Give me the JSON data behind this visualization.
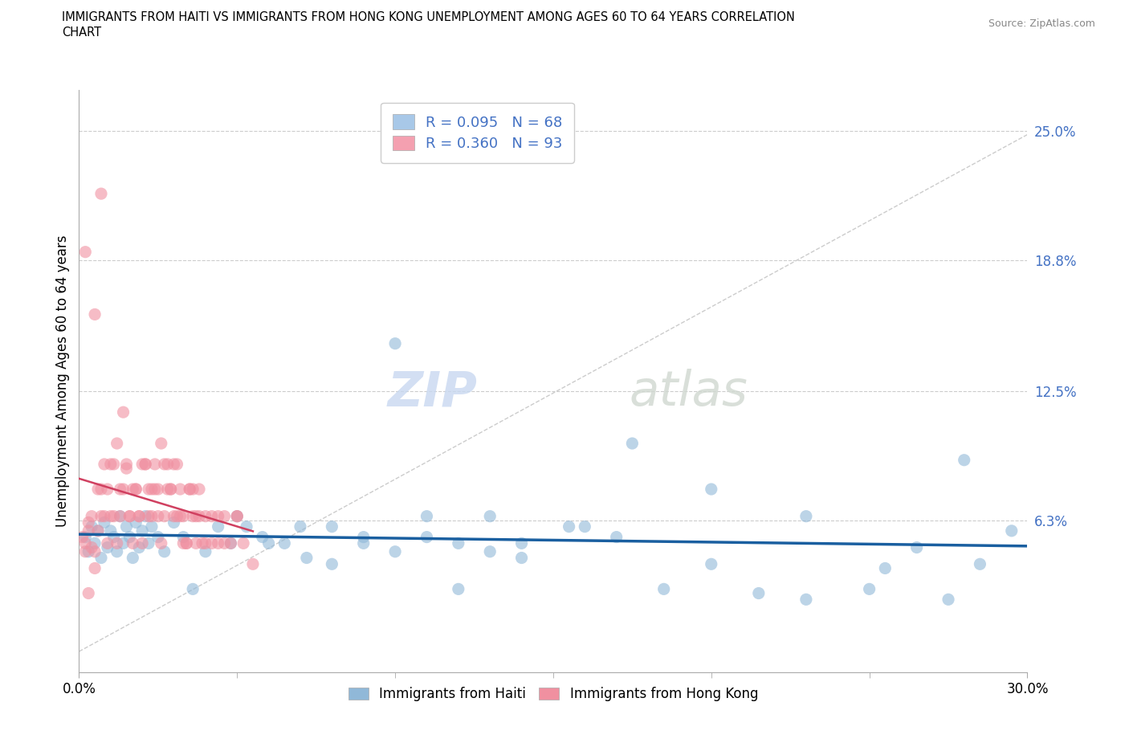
{
  "title_line1": "IMMIGRANTS FROM HAITI VS IMMIGRANTS FROM HONG KONG UNEMPLOYMENT AMONG AGES 60 TO 64 YEARS CORRELATION",
  "title_line2": "CHART",
  "source_text": "Source: ZipAtlas.com",
  "ylabel": "Unemployment Among Ages 60 to 64 years",
  "xmin": 0.0,
  "xmax": 0.3,
  "ymin": -0.01,
  "ymax": 0.27,
  "ytick_vals": [
    0.063,
    0.125,
    0.188,
    0.25
  ],
  "ytick_labels": [
    "6.3%",
    "12.5%",
    "18.8%",
    "25.0%"
  ],
  "xtick_vals": [
    0.0,
    0.3
  ],
  "xtick_labels": [
    "0.0%",
    "30.0%"
  ],
  "xtick_minor_vals": [
    0.05,
    0.1,
    0.15,
    0.2,
    0.25
  ],
  "legend_entries": [
    {
      "label": "R = 0.095   N = 68",
      "color": "#a8c8e8"
    },
    {
      "label": "R = 0.360   N = 93",
      "color": "#f4a0b0"
    }
  ],
  "legend_bottom_labels": [
    "Immigrants from Haiti",
    "Immigrants from Hong Kong"
  ],
  "haiti_color": "#90b8d8",
  "hongkong_color": "#f090a0",
  "haiti_trend_color": "#1a5fa0",
  "hongkong_trend_color": "#d04060",
  "diagonal_color": "#d0d0d0",
  "watermark_zip": "ZIP",
  "watermark_atlas": "atlas",
  "haiti_scatter_x": [
    0.002,
    0.003,
    0.004,
    0.005,
    0.006,
    0.007,
    0.008,
    0.009,
    0.01,
    0.011,
    0.012,
    0.013,
    0.014,
    0.015,
    0.016,
    0.017,
    0.018,
    0.019,
    0.02,
    0.021,
    0.022,
    0.023,
    0.025,
    0.027,
    0.03,
    0.033,
    0.036,
    0.04,
    0.044,
    0.048,
    0.053,
    0.058,
    0.065,
    0.072,
    0.08,
    0.09,
    0.1,
    0.11,
    0.12,
    0.13,
    0.14,
    0.155,
    0.17,
    0.185,
    0.2,
    0.215,
    0.23,
    0.25,
    0.265,
    0.275,
    0.285,
    0.295,
    0.05,
    0.06,
    0.07,
    0.08,
    0.09,
    0.1,
    0.11,
    0.12,
    0.13,
    0.14,
    0.16,
    0.175,
    0.2,
    0.23,
    0.255,
    0.28
  ],
  "haiti_scatter_y": [
    0.055,
    0.048,
    0.06,
    0.052,
    0.058,
    0.045,
    0.062,
    0.05,
    0.058,
    0.055,
    0.048,
    0.065,
    0.052,
    0.06,
    0.055,
    0.045,
    0.062,
    0.05,
    0.058,
    0.065,
    0.052,
    0.06,
    0.055,
    0.048,
    0.062,
    0.055,
    0.03,
    0.048,
    0.06,
    0.052,
    0.06,
    0.055,
    0.052,
    0.045,
    0.06,
    0.055,
    0.148,
    0.055,
    0.052,
    0.065,
    0.052,
    0.06,
    0.055,
    0.03,
    0.042,
    0.028,
    0.065,
    0.03,
    0.05,
    0.025,
    0.042,
    0.058,
    0.065,
    0.052,
    0.06,
    0.042,
    0.052,
    0.048,
    0.065,
    0.03,
    0.048,
    0.045,
    0.06,
    0.1,
    0.078,
    0.025,
    0.04,
    0.092
  ],
  "hongkong_scatter_x": [
    0.001,
    0.002,
    0.003,
    0.004,
    0.005,
    0.006,
    0.007,
    0.008,
    0.009,
    0.01,
    0.011,
    0.012,
    0.013,
    0.014,
    0.015,
    0.016,
    0.017,
    0.018,
    0.019,
    0.02,
    0.021,
    0.022,
    0.023,
    0.024,
    0.025,
    0.026,
    0.027,
    0.028,
    0.029,
    0.03,
    0.031,
    0.032,
    0.033,
    0.034,
    0.035,
    0.036,
    0.037,
    0.038,
    0.04,
    0.042,
    0.044,
    0.046,
    0.05,
    0.003,
    0.005,
    0.007,
    0.009,
    0.011,
    0.013,
    0.015,
    0.017,
    0.019,
    0.021,
    0.023,
    0.025,
    0.027,
    0.029,
    0.031,
    0.033,
    0.035,
    0.037,
    0.039,
    0.002,
    0.004,
    0.006,
    0.008,
    0.01,
    0.012,
    0.014,
    0.016,
    0.018,
    0.02,
    0.022,
    0.024,
    0.026,
    0.028,
    0.03,
    0.032,
    0.034,
    0.036,
    0.038,
    0.04,
    0.042,
    0.044,
    0.046,
    0.048,
    0.05,
    0.052,
    0.055,
    0.003,
    0.007,
    0.002,
    0.005
  ],
  "hongkong_scatter_y": [
    0.055,
    0.048,
    0.062,
    0.05,
    0.04,
    0.058,
    0.078,
    0.065,
    0.052,
    0.09,
    0.065,
    0.1,
    0.078,
    0.115,
    0.088,
    0.065,
    0.052,
    0.078,
    0.065,
    0.052,
    0.09,
    0.078,
    0.065,
    0.09,
    0.078,
    0.1,
    0.065,
    0.09,
    0.078,
    0.065,
    0.09,
    0.078,
    0.065,
    0.052,
    0.078,
    0.065,
    0.052,
    0.078,
    0.065,
    0.052,
    0.065,
    0.052,
    0.065,
    0.058,
    0.048,
    0.065,
    0.078,
    0.09,
    0.065,
    0.09,
    0.078,
    0.065,
    0.09,
    0.078,
    0.065,
    0.09,
    0.078,
    0.065,
    0.052,
    0.078,
    0.065,
    0.052,
    0.052,
    0.065,
    0.078,
    0.09,
    0.065,
    0.052,
    0.078,
    0.065,
    0.078,
    0.09,
    0.065,
    0.078,
    0.052,
    0.078,
    0.09,
    0.065,
    0.052,
    0.078,
    0.065,
    0.052,
    0.065,
    0.052,
    0.065,
    0.052,
    0.065,
    0.052,
    0.042,
    0.028,
    0.22,
    0.192,
    0.162
  ]
}
